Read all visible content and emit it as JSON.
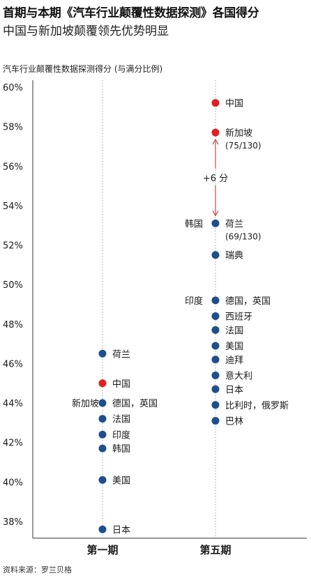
{
  "title": "首期与本期《汽车行业颠覆性数据探测》各国得分",
  "subtitle": "中国与新加坡颠覆领先优势明显",
  "ylabel": "汽车行业颠覆性数据探测得分 (与满分比例)",
  "source": "资料来源：罗兰贝格",
  "colors": {
    "highlight": "#e02020",
    "normal": "#1d4f8c",
    "annotation": "#cc2222",
    "axis": "#333333",
    "guide": "#9aa3ad"
  },
  "chart_data": {
    "type": "scatter",
    "title": "首期与本期《汽车行业颠覆性数据探测》各国得分",
    "ylabel": "汽车行业颠覆性数据探测得分 (与满分比例)",
    "ylim": [
      37.5,
      60
    ],
    "yticks": [
      38,
      40,
      42,
      44,
      46,
      48,
      50,
      52,
      54,
      56,
      58,
      60
    ],
    "ytick_labels": [
      "38%",
      "40%",
      "42%",
      "44%",
      "46%",
      "48%",
      "50%",
      "52%",
      "54%",
      "56%",
      "58%",
      "60%"
    ],
    "categories": [
      "第一期",
      "第五期"
    ],
    "series": [
      {
        "points": [
          {
            "value": 46.5,
            "label": "荷兰",
            "highlight": false
          },
          {
            "value": 45.0,
            "label": "中国",
            "highlight": true
          },
          {
            "value": 44.0,
            "label": "德国，英国",
            "left_label": "新加坡",
            "highlight": false
          },
          {
            "value": 43.2,
            "label": "法国",
            "highlight": false
          },
          {
            "value": 42.4,
            "label": "印度",
            "highlight": false
          },
          {
            "value": 41.7,
            "label": "韩国",
            "highlight": false
          },
          {
            "value": 40.1,
            "label": "美国",
            "highlight": false
          },
          {
            "value": 37.6,
            "label": "日本",
            "highlight": false
          }
        ]
      },
      {
        "points": [
          {
            "value": 59.2,
            "label": "中国",
            "highlight": true
          },
          {
            "value": 57.7,
            "label": "新加坡",
            "sublabel": "(75/130)",
            "highlight": true
          },
          {
            "value": 53.1,
            "label": "荷兰",
            "sublabel": "(69/130)",
            "left_label": "韩国",
            "highlight": false
          },
          {
            "value": 51.5,
            "label": "瑞典",
            "highlight": false
          },
          {
            "value": 49.2,
            "label": "德国，英国",
            "left_label": "印度",
            "highlight": false
          },
          {
            "value": 48.4,
            "label": "西班牙",
            "highlight": false
          },
          {
            "value": 47.7,
            "label": "法国",
            "highlight": false
          },
          {
            "value": 46.9,
            "label": "美国",
            "highlight": false
          },
          {
            "value": 46.2,
            "label": "迪拜",
            "highlight": false
          },
          {
            "value": 45.4,
            "label": "意大利",
            "highlight": false
          },
          {
            "value": 44.7,
            "label": "日本",
            "highlight": false
          },
          {
            "value": 43.9,
            "label": "比利时，俄罗斯",
            "highlight": false
          },
          {
            "value": 43.1,
            "label": "巴林",
            "highlight": false
          }
        ]
      }
    ],
    "annotation": {
      "text": "+6 分",
      "from": 53.1,
      "to": 57.7,
      "column": 1
    }
  }
}
